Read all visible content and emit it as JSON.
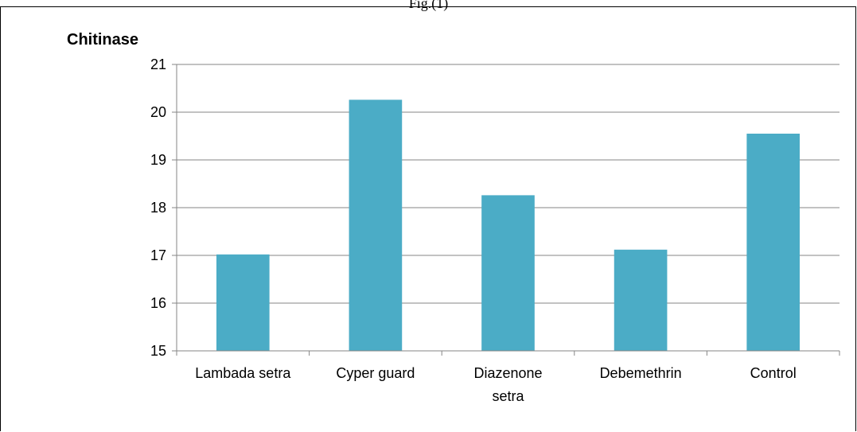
{
  "figure": {
    "caption": "Fig.(1)"
  },
  "colors": {
    "bar": "#4BACC6",
    "grid": "#868686",
    "axis": "#868686"
  },
  "chart_data": {
    "type": "bar",
    "title": "",
    "xlabel": "",
    "ylabel": "Chitinase",
    "categories": [
      "Lambada setra",
      "Cyper guard",
      "Diazenone setra",
      "Debemethrin",
      "Control"
    ],
    "category_label_lines": [
      [
        "Lambada setra"
      ],
      [
        "Cyper guard"
      ],
      [
        "Diazenone",
        "setra"
      ],
      [
        "Debemethrin"
      ],
      [
        "Control"
      ]
    ],
    "values": [
      17.02,
      20.26,
      18.26,
      17.12,
      19.55
    ],
    "ylim": [
      15,
      21
    ],
    "yticks": [
      "15",
      "16",
      "17",
      "18",
      "19",
      "20",
      "21"
    ],
    "grid": true,
    "legend": "none"
  }
}
